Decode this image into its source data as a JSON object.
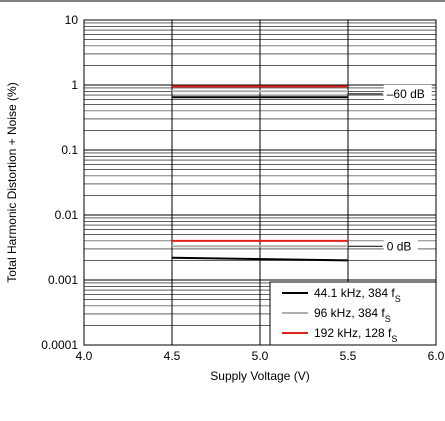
{
  "chart_data": {
    "type": "line",
    "xlabel": "Supply Voltage (V)",
    "ylabel": "Total Harmonic Distortion + Noise (%)",
    "xlim": [
      4.0,
      6.0
    ],
    "ylim": [
      0.0001,
      10
    ],
    "y_scale": "log",
    "x_ticks": [
      "4.0",
      "4.5",
      "5.0",
      "5.5",
      "6.0"
    ],
    "y_ticks": [
      "0.0001",
      "0.001",
      "0.01",
      "0.1",
      "1",
      "10"
    ],
    "grid": true,
    "legend_position": "bottom-right",
    "series": [
      {
        "name": "44.1 kHz, 384 f",
        "subscript": "S",
        "color": "#000000",
        "curves": [
          {
            "x": [
              4.5,
              5.5
            ],
            "y": [
              0.65,
              0.65
            ]
          },
          {
            "x": [
              4.5,
              5.5
            ],
            "y": [
              0.0022,
              0.002
            ]
          }
        ]
      },
      {
        "name": "96  kHz, 384 f",
        "subscript": "S",
        "color": "#b0b0b0",
        "curves": [
          {
            "x": [
              4.5,
              5.5
            ],
            "y": [
              0.8,
              0.8
            ]
          },
          {
            "x": [
              4.5,
              5.5
            ],
            "y": [
              0.0033,
              0.0033
            ]
          }
        ]
      },
      {
        "name": "192 kHz, 128 f",
        "subscript": "S",
        "color": "#e0201b",
        "curves": [
          {
            "x": [
              4.5,
              5.5
            ],
            "y": [
              0.95,
              0.95
            ]
          },
          {
            "x": [
              4.5,
              5.5
            ],
            "y": [
              0.004,
              0.004
            ]
          }
        ]
      }
    ],
    "annotations": [
      {
        "text": "–60 dB",
        "x": 5.72,
        "y": 0.73
      },
      {
        "text": "0 dB",
        "x": 5.72,
        "y": 0.0033
      }
    ]
  }
}
